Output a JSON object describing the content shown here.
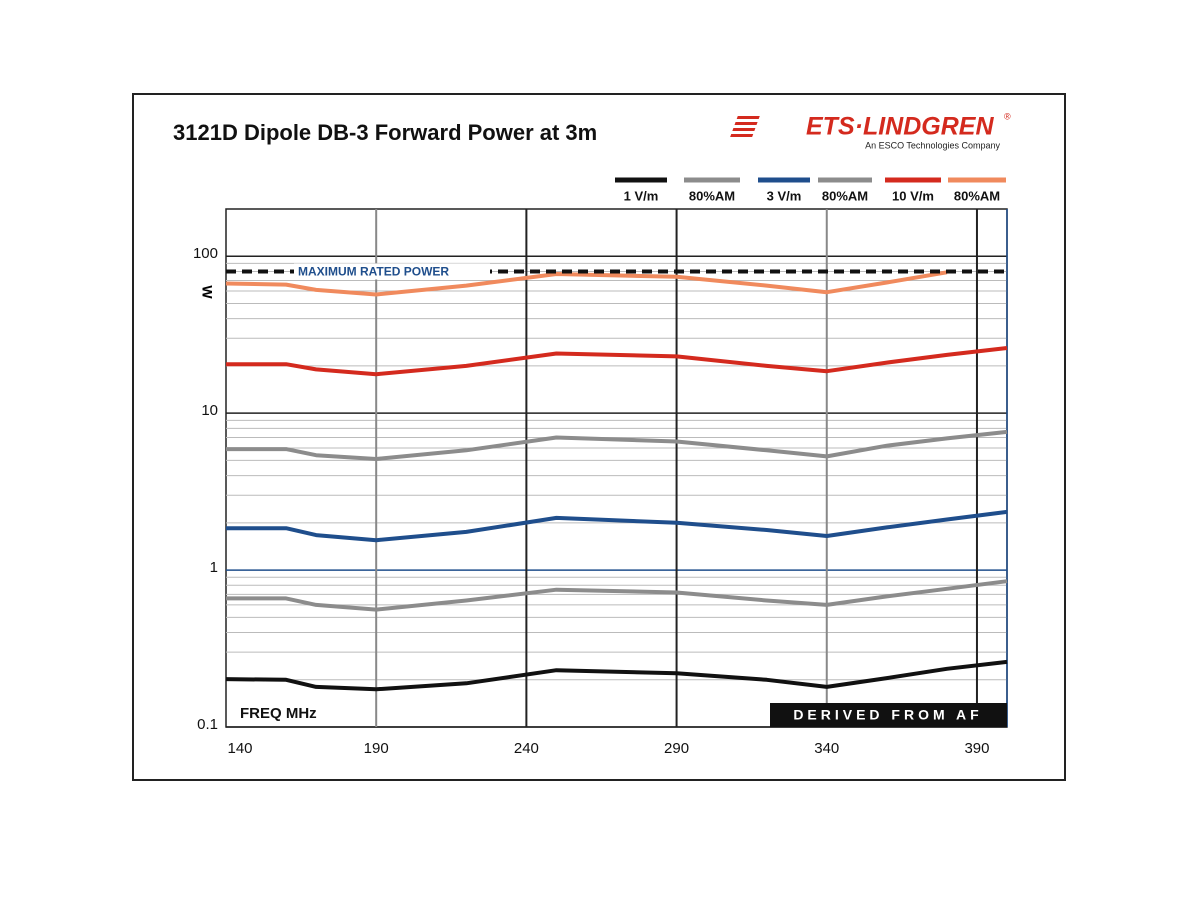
{
  "logo": {
    "name": "ETS·LINDGREN",
    "mark": "®",
    "tagline": "An ESCO Technologies Company"
  },
  "chart_data": {
    "type": "line",
    "title": "3121D Dipole DB-3 Forward Power at 3m",
    "x_label": "FREQ MHz",
    "y_label": "W",
    "note": "DERIVED FROM AF",
    "x": [
      140,
      160,
      170,
      190,
      220,
      250,
      290,
      320,
      340,
      360,
      380,
      400
    ],
    "series": [
      {
        "name": "1 V/m",
        "color": "#111111",
        "values": [
          0.202,
          0.2,
          0.18,
          0.174,
          0.19,
          0.23,
          0.22,
          0.2,
          0.18,
          0.205,
          0.235,
          0.26
        ]
      },
      {
        "name": "80%AM",
        "color": "#8c8c8c",
        "values": [
          0.66,
          0.66,
          0.6,
          0.56,
          0.64,
          0.75,
          0.72,
          0.64,
          0.6,
          0.68,
          0.76,
          0.85
        ]
      },
      {
        "name": "3 V/m",
        "color": "#1f4e8c",
        "values": [
          1.85,
          1.85,
          1.67,
          1.55,
          1.75,
          2.15,
          2.0,
          1.8,
          1.65,
          1.87,
          2.1,
          2.35
        ]
      },
      {
        "name": "80%AM",
        "color": "#8c8c8c",
        "values": [
          5.9,
          5.9,
          5.4,
          5.1,
          5.8,
          7.0,
          6.6,
          5.8,
          5.3,
          6.2,
          6.9,
          7.6
        ]
      },
      {
        "name": "10 V/m",
        "color": "#d42a1e",
        "values": [
          20.5,
          20.5,
          19,
          17.7,
          20,
          24,
          23,
          20,
          18.5,
          21,
          23.5,
          26
        ]
      },
      {
        "name": "80%AM",
        "color": "#f08a5d",
        "values": [
          67,
          66,
          61,
          57,
          65,
          77,
          74,
          65,
          59,
          68,
          79,
          null
        ]
      }
    ],
    "annotations": [
      {
        "text": "MAXIMUM RATED POWER",
        "value": 80
      }
    ],
    "xlim": [
      140,
      400
    ],
    "xticks": [
      140,
      190,
      240,
      290,
      340,
      390
    ],
    "ylim": [
      0.1,
      200
    ],
    "yticks": [
      0.1,
      1,
      10,
      100
    ],
    "minor_yticks": [
      0.2,
      0.3,
      0.4,
      0.5,
      0.6,
      0.7,
      0.8,
      0.9,
      2,
      3,
      4,
      5,
      6,
      7,
      8,
      9,
      20,
      30,
      40,
      50,
      60,
      70,
      80,
      90
    ],
    "ylog": true,
    "grid": true
  }
}
